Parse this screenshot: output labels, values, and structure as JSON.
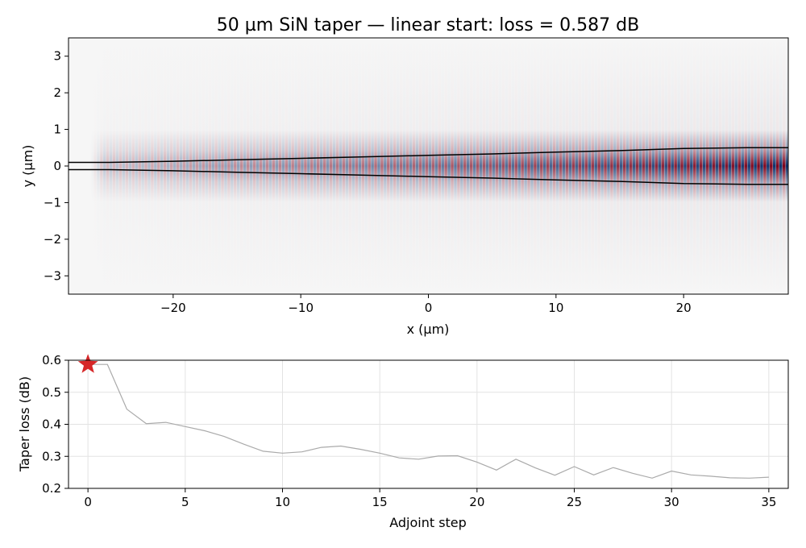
{
  "chart_data": [
    {
      "type": "heatmap",
      "title": "50 µm SiN taper — linear start:  loss = 0.587 dB",
      "xlabel": "x (µm)",
      "ylabel": "y (µm)",
      "xlim": [
        -28.2,
        28.2
      ],
      "ylim": [
        -3.5,
        3.5
      ],
      "xticks": [
        -20,
        -10,
        0,
        10,
        20
      ],
      "xtick_labels": [
        "−20",
        "−10",
        "0",
        "10",
        "20"
      ],
      "yticks": [
        -3,
        -2,
        -1,
        0,
        1,
        2,
        3
      ],
      "ytick_labels": [
        "−3",
        "−2",
        "−1",
        "0",
        "1",
        "2",
        "3"
      ],
      "colormap": "RdBu",
      "field": {
        "source_x": -26.5,
        "fringe_period": 0.5,
        "amplitude_start": 0.35,
        "amplitude_end": 1.0
      },
      "taper_outline": {
        "x": [
          -28.2,
          -25,
          -20,
          -15,
          -10,
          -5,
          0,
          5,
          10,
          15,
          20,
          25,
          28.2
        ],
        "half_width": [
          0.1,
          0.1,
          0.13,
          0.17,
          0.21,
          0.25,
          0.29,
          0.33,
          0.38,
          0.42,
          0.48,
          0.5,
          0.5
        ]
      },
      "outline_color": "#000000"
    },
    {
      "type": "line",
      "title": "",
      "xlabel": "Adjoint step",
      "ylabel": "Taper loss (dB)",
      "xlim": [
        -1,
        36
      ],
      "ylim": [
        0.2,
        0.6
      ],
      "xticks": [
        0,
        5,
        10,
        15,
        20,
        25,
        30,
        35
      ],
      "xtick_labels": [
        "0",
        "5",
        "10",
        "15",
        "20",
        "25",
        "30",
        "35"
      ],
      "yticks": [
        0.2,
        0.3,
        0.4,
        0.5,
        0.6
      ],
      "ytick_labels": [
        "0.2",
        "0.3",
        "0.4",
        "0.5",
        "0.6"
      ],
      "grid": true,
      "series": [
        {
          "x": [
            0,
            1,
            2,
            3,
            4,
            5,
            6,
            7,
            8,
            9,
            10,
            11,
            12,
            13,
            14,
            15,
            16,
            17,
            18,
            19,
            20,
            21,
            22,
            23,
            24,
            25,
            26,
            27,
            28,
            29,
            30,
            31,
            32,
            33,
            34,
            35
          ],
          "values": [
            0.587,
            0.587,
            0.447,
            0.402,
            0.406,
            0.393,
            0.38,
            0.362,
            0.338,
            0.316,
            0.31,
            0.314,
            0.328,
            0.332,
            0.322,
            0.31,
            0.295,
            0.291,
            0.301,
            0.302,
            0.282,
            0.257,
            0.291,
            0.264,
            0.241,
            0.268,
            0.242,
            0.265,
            0.247,
            0.232,
            0.254,
            0.242,
            0.238,
            0.233,
            0.232,
            0.235
          ],
          "color": "#aaaaaa"
        }
      ],
      "marker": {
        "x": 0,
        "y": 0.587,
        "shape": "star",
        "color": "#d62728"
      }
    }
  ]
}
